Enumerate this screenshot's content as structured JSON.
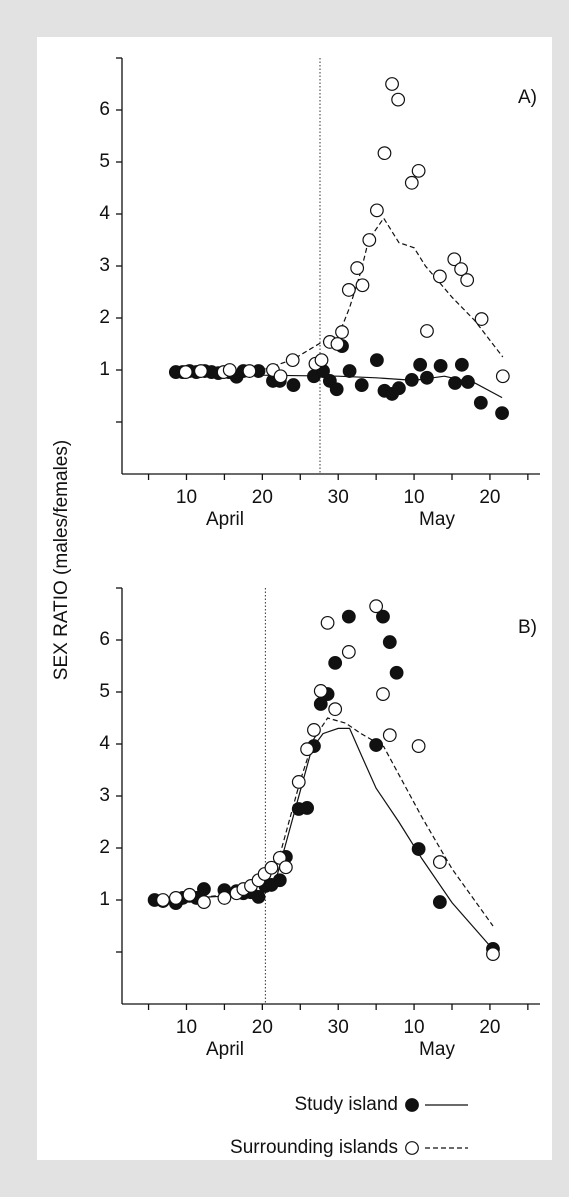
{
  "y_label": "SEX RATIO (males/females)",
  "chart_data": [
    {
      "type": "scatter",
      "title": "A)",
      "xlim": [
        1.5,
        56.6
      ],
      "ylim": [
        -1,
        7
      ],
      "xticks": [
        10,
        20,
        30,
        {
          "value": 40,
          "label": "10"
        },
        {
          "value": 50,
          "label": "20"
        }
      ],
      "minor_xticks": [
        5,
        15,
        25,
        35,
        45,
        55
      ],
      "yticks": [
        1,
        2,
        3,
        4,
        5,
        6
      ],
      "minor_yticks": [
        0,
        7
      ],
      "x_groups": [
        "April",
        "May"
      ],
      "ref_x": 27.6,
      "series": [
        {
          "marker": "filled",
          "line_style": "solid",
          "x": [
            8.6,
            9.5,
            10.4,
            11.3,
            12.4,
            13.3,
            14.2,
            15.6,
            16.6,
            17.5,
            19.5,
            21.4,
            22.3,
            24.1,
            26.8,
            28.0,
            28.9,
            29.8,
            30.5,
            31.5,
            33.1,
            35.1,
            36.1,
            37.1,
            38.0,
            39.7,
            40.8,
            41.7,
            43.5,
            45.4,
            46.3,
            47.1,
            48.8,
            51.6
          ],
          "values": [
            0.96,
            0.96,
            0.98,
            0.96,
            0.98,
            0.96,
            0.94,
            0.96,
            0.87,
            0.98,
            0.98,
            0.79,
            0.79,
            0.71,
            0.88,
            0.98,
            0.79,
            0.63,
            1.46,
            0.98,
            0.71,
            1.19,
            0.6,
            0.54,
            0.65,
            0.81,
            1.1,
            0.85,
            1.08,
            0.75,
            1.1,
            0.77,
            0.37,
            0.17
          ],
          "trend_x": [
            8.6,
            15,
            20,
            25,
            30,
            35,
            40,
            44,
            48,
            51.6
          ],
          "trend_values": [
            0.96,
            0.93,
            0.9,
            0.89,
            0.88,
            0.85,
            0.8,
            0.88,
            0.75,
            0.47
          ]
        },
        {
          "marker": "open",
          "line_style": "dashed",
          "x": [
            9.9,
            11.9,
            14.9,
            15.7,
            18.3,
            21.4,
            22.4,
            24.0,
            27.0,
            27.8,
            28.9,
            29.9,
            30.5,
            31.4,
            32.5,
            33.2,
            34.1,
            35.1,
            36.1,
            37.1,
            37.9,
            39.7,
            40.6,
            41.7,
            43.4,
            45.3,
            46.2,
            47.0,
            48.9,
            51.7
          ],
          "values": [
            0.96,
            0.98,
            0.96,
            1.0,
            0.98,
            1.0,
            0.88,
            1.19,
            1.12,
            1.19,
            1.54,
            1.5,
            1.73,
            2.54,
            2.96,
            2.63,
            3.5,
            4.07,
            5.17,
            6.5,
            6.2,
            4.6,
            4.83,
            1.75,
            2.8,
            3.13,
            2.94,
            2.73,
            1.98,
            0.88
          ],
          "trend_x": [
            9.9,
            15,
            20,
            24,
            28,
            30,
            31.5,
            33,
            34,
            36,
            38,
            40,
            41.5,
            45,
            48,
            51.7
          ],
          "trend_values": [
            0.98,
            0.99,
            1.0,
            1.2,
            1.55,
            1.65,
            2.2,
            2.9,
            3.5,
            3.92,
            3.45,
            3.35,
            3.0,
            2.4,
            1.95,
            1.25
          ]
        }
      ]
    },
    {
      "type": "scatter",
      "title": "B)",
      "xlim": [
        1.5,
        56.6
      ],
      "ylim": [
        -1,
        7
      ],
      "xticks": [
        10,
        20,
        30,
        {
          "value": 40,
          "label": "10"
        },
        {
          "value": 50,
          "label": "20"
        }
      ],
      "minor_xticks": [
        5,
        15,
        25,
        35,
        45,
        55
      ],
      "yticks": [
        1,
        2,
        3,
        4,
        5,
        6
      ],
      "minor_yticks": [
        0,
        7
      ],
      "x_groups": [
        "April",
        "May"
      ],
      "ref_x": 20.4,
      "series": [
        {
          "name": "Study island",
          "marker": "filled",
          "line_style": "solid",
          "x": [
            5.8,
            6.9,
            8.6,
            9.5,
            10.4,
            11.3,
            12.3,
            15.0,
            16.6,
            17.5,
            18.5,
            19.5,
            20.4,
            21.2,
            22.3,
            23.1,
            24.8,
            25.9,
            26.8,
            27.7,
            28.6,
            29.6,
            31.4,
            35.0,
            35.9,
            36.8,
            37.7,
            40.6,
            43.4,
            50.4
          ],
          "values": [
            1.0,
            0.98,
            0.94,
            1.04,
            1.08,
            1.04,
            1.21,
            1.19,
            1.17,
            1.13,
            1.15,
            1.06,
            1.27,
            1.29,
            1.38,
            1.83,
            2.75,
            2.77,
            3.96,
            4.77,
            4.96,
            5.56,
            6.45,
            3.98,
            6.45,
            5.96,
            5.37,
            1.98,
            0.96,
            0.06
          ],
          "trend_x": [
            5.8,
            12,
            18,
            20.5,
            22,
            23.5,
            25,
            26.5,
            28,
            30,
            31.5,
            33,
            35,
            38,
            41,
            45,
            50.4
          ],
          "trend_values": [
            1.0,
            1.05,
            1.1,
            1.2,
            1.5,
            2.3,
            3.1,
            3.9,
            4.2,
            4.3,
            4.3,
            3.8,
            3.15,
            2.5,
            1.8,
            0.95,
            0.05
          ]
        },
        {
          "name": "Surrounding islands",
          "marker": "open",
          "line_style": "dashed",
          "x": [
            6.9,
            8.6,
            10.4,
            12.3,
            15.0,
            16.6,
            17.5,
            18.5,
            19.5,
            20.3,
            21.2,
            22.3,
            23.1,
            24.8,
            25.9,
            26.8,
            27.7,
            28.6,
            29.6,
            31.4,
            35.0,
            35.9,
            36.8,
            40.6,
            43.4,
            50.4
          ],
          "values": [
            1.0,
            1.04,
            1.1,
            0.96,
            1.04,
            1.13,
            1.21,
            1.27,
            1.38,
            1.5,
            1.62,
            1.81,
            1.63,
            3.27,
            3.9,
            4.27,
            5.02,
            6.33,
            4.67,
            5.77,
            6.65,
            4.96,
            4.17,
            3.96,
            1.73,
            -0.04
          ],
          "trend_x": [
            6.9,
            12,
            18,
            20.5,
            22,
            23.5,
            25,
            26.8,
            28.6,
            31,
            33,
            36,
            41,
            45,
            50.4
          ],
          "trend_values": [
            1.0,
            1.05,
            1.15,
            1.35,
            1.7,
            2.5,
            3.3,
            4.1,
            4.5,
            4.4,
            4.2,
            3.95,
            2.6,
            1.6,
            0.5
          ]
        }
      ]
    }
  ]
}
